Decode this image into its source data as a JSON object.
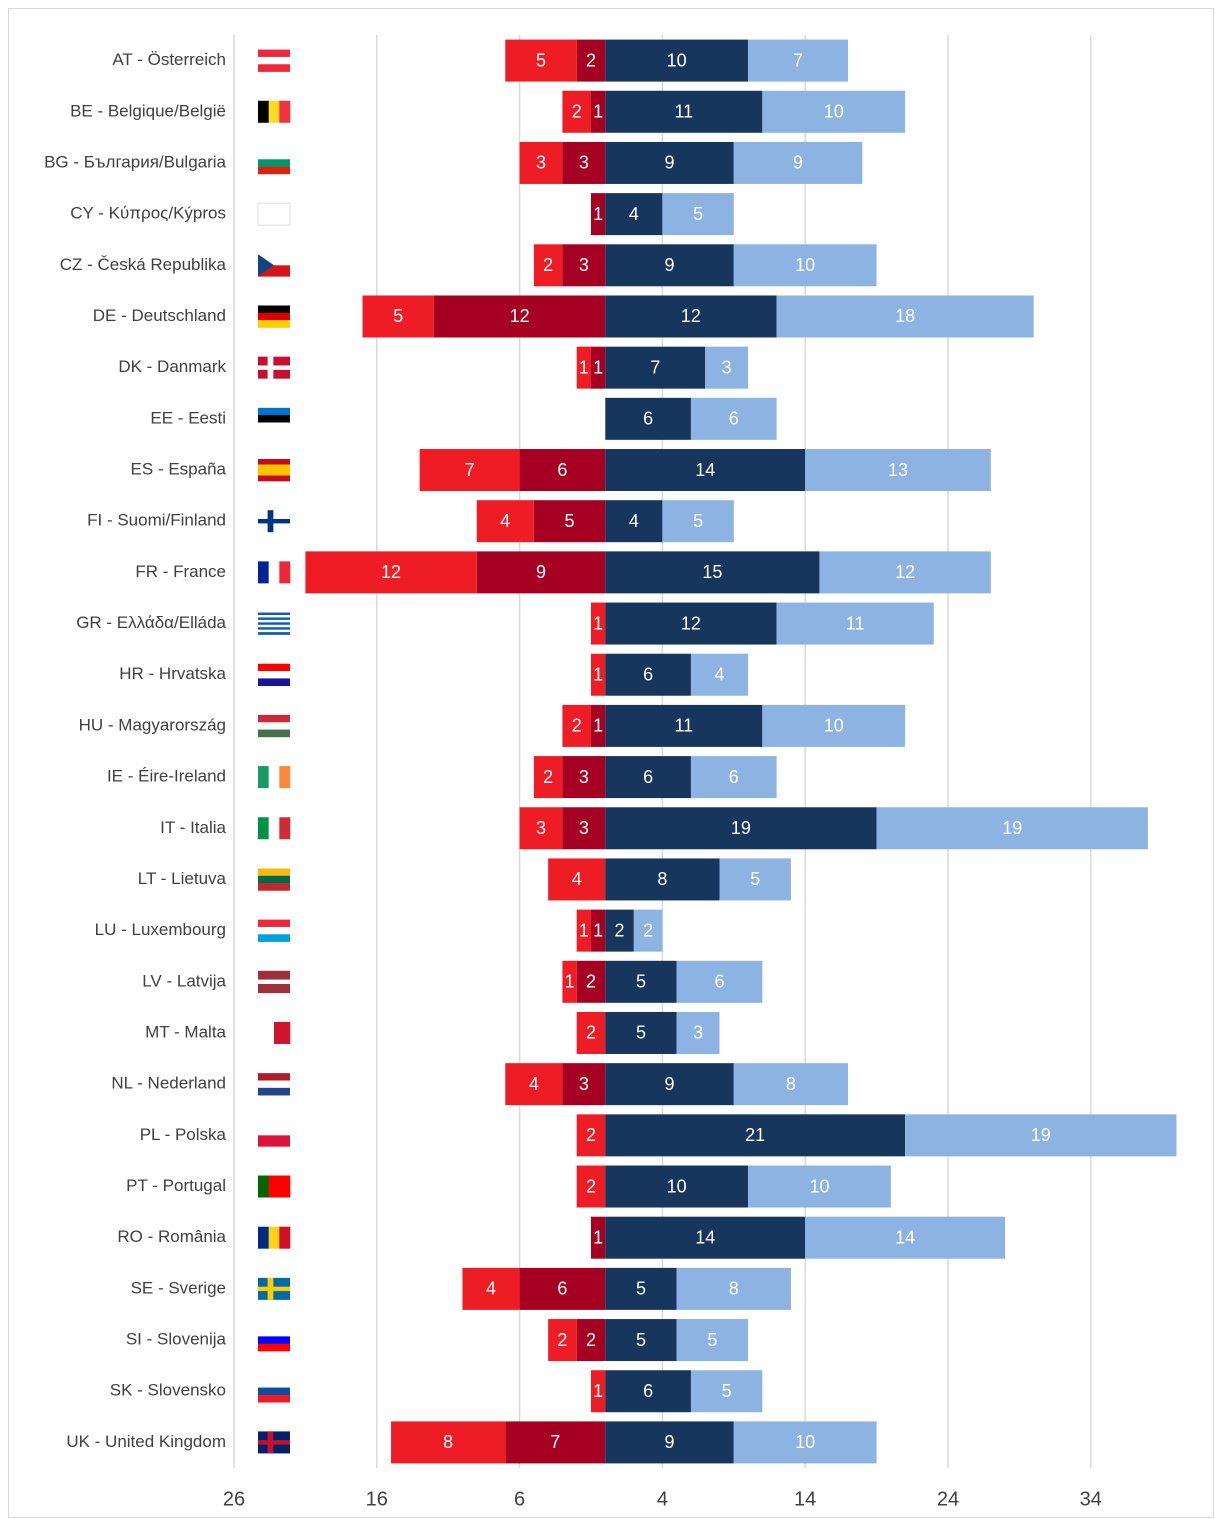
{
  "chart_data": {
    "type": "diverging-bar",
    "categories": [
      "AT - Österreich",
      "BE - Belgique/België",
      "BG - България/Bulgaria",
      "CY - Κύπρος/Kýpros",
      "CZ - Česká Republika",
      "DE - Deutschland",
      "DK - Danmark",
      "EE - Eesti",
      "ES - España",
      "FI - Suomi/Finland",
      "FR - France",
      "GR - Ελλάδα/Elláda",
      "HR - Hrvatska",
      "HU - Magyarország",
      "IE - Éire-Ireland",
      "IT - Italia",
      "LT - Lietuva",
      "LU - Luxembourg",
      "LV - Latvija",
      "MT - Malta",
      "NL - Nederland",
      "PL - Polska",
      "PT - Portugal",
      "RO - România",
      "SE - Sverige",
      "SI - Slovenija",
      "SK - Slovensko",
      "UK - United Kingdom"
    ],
    "series": [
      {
        "color": "#a50021",
        "values": [
          -2,
          -1,
          -3,
          -1,
          -3,
          -12,
          -1,
          null,
          -6,
          -5,
          -9,
          null,
          null,
          -1,
          -3,
          -3,
          null,
          -1,
          -2,
          null,
          -3,
          null,
          null,
          -1,
          -6,
          -2,
          null,
          -7
        ],
        "value_labels": [
          "2",
          "1",
          "3",
          "1",
          "3",
          "12",
          "1",
          null,
          "6",
          "5",
          "9",
          null,
          null,
          "1",
          "3",
          "3",
          null,
          "1",
          "2",
          null,
          "3",
          null,
          null,
          "1",
          "6",
          "2",
          null,
          "7"
        ]
      },
      {
        "color": "#ee1c25",
        "values": [
          -5,
          -2,
          -3,
          null,
          -2,
          -5,
          -1,
          null,
          -7,
          -4,
          -12,
          -1,
          -1,
          -2,
          -2,
          -3,
          -4,
          -1,
          -1,
          -2,
          -4,
          -2,
          -2,
          null,
          -4,
          -2,
          -1,
          -8
        ],
        "value_labels": [
          "5",
          "2",
          "3",
          null,
          "2",
          "5",
          "1",
          null,
          "7",
          "4",
          "12",
          "1",
          "1",
          "2",
          "2",
          "3",
          "4",
          "1",
          "1",
          "2",
          "4",
          "2",
          "2",
          null,
          "4",
          "2",
          "1",
          "8"
        ]
      },
      {
        "color": "#17365d",
        "values": [
          10,
          11,
          9,
          4,
          9,
          12,
          7,
          6,
          14,
          4,
          15,
          12,
          6,
          11,
          6,
          19,
          8,
          2,
          5,
          5,
          9,
          21,
          10,
          14,
          5,
          5,
          6,
          9
        ]
      },
      {
        "color": "#8db3e2",
        "values": [
          7,
          10,
          9,
          5,
          10,
          18,
          3,
          6,
          13,
          5,
          12,
          11,
          4,
          10,
          6,
          19,
          5,
          2,
          6,
          3,
          8,
          19,
          10,
          14,
          8,
          5,
          5,
          10
        ]
      }
    ],
    "xlim": [
      -26,
      42
    ],
    "xticks": [
      {
        "value": -26,
        "label": "26"
      },
      {
        "value": -16,
        "label": "16"
      },
      {
        "value": -6,
        "label": "6"
      },
      4,
      14,
      24,
      34
    ],
    "grid": true
  }
}
